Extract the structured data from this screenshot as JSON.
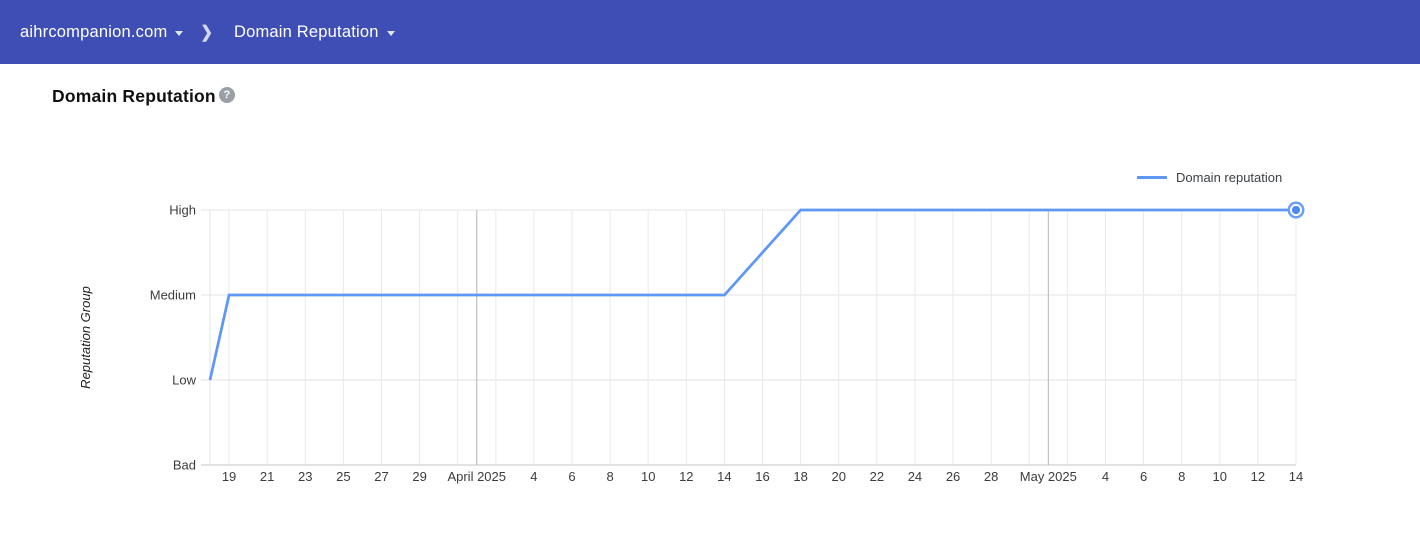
{
  "header": {
    "site_label": "aihrcompanion.com",
    "page_label": "Domain Reputation"
  },
  "icons": {
    "chevron": "❯",
    "help": "?"
  },
  "main": {
    "title": "Domain Reputation"
  },
  "legend": {
    "label": "Domain reputation"
  },
  "chart_data": {
    "type": "line",
    "title": "Domain Reputation",
    "xlabel": "",
    "ylabel": "Reputation Group",
    "y_categories": [
      "Bad",
      "Low",
      "Medium",
      "High"
    ],
    "x_span_days": 57,
    "x_gridline_every_days": 2,
    "grid": true,
    "legend_position": "top-right",
    "x_ticks": [
      {
        "day": 1,
        "label": "19"
      },
      {
        "day": 3,
        "label": "21"
      },
      {
        "day": 5,
        "label": "23"
      },
      {
        "day": 7,
        "label": "25"
      },
      {
        "day": 9,
        "label": "27"
      },
      {
        "day": 11,
        "label": "29"
      },
      {
        "day": 14,
        "label": "April 2025",
        "month": true
      },
      {
        "day": 17,
        "label": "4"
      },
      {
        "day": 19,
        "label": "6"
      },
      {
        "day": 21,
        "label": "8"
      },
      {
        "day": 23,
        "label": "10"
      },
      {
        "day": 25,
        "label": "12"
      },
      {
        "day": 27,
        "label": "14"
      },
      {
        "day": 29,
        "label": "16"
      },
      {
        "day": 31,
        "label": "18"
      },
      {
        "day": 33,
        "label": "20"
      },
      {
        "day": 35,
        "label": "22"
      },
      {
        "day": 37,
        "label": "24"
      },
      {
        "day": 39,
        "label": "26"
      },
      {
        "day": 41,
        "label": "28"
      },
      {
        "day": 44,
        "label": "May 2025",
        "month": true
      },
      {
        "day": 47,
        "label": "4"
      },
      {
        "day": 49,
        "label": "6"
      },
      {
        "day": 51,
        "label": "8"
      },
      {
        "day": 53,
        "label": "10"
      },
      {
        "day": 55,
        "label": "12"
      },
      {
        "day": 57,
        "label": "14"
      }
    ],
    "series": [
      {
        "name": "Domain reputation",
        "interpolation": "linear",
        "end_marker": "selected-point",
        "points": [
          {
            "day": 0,
            "date": "Mar 18, 2025",
            "value": "Low"
          },
          {
            "day": 1,
            "date": "Mar 19, 2025",
            "value": "Medium"
          },
          {
            "day": 27,
            "date": "Apr 14, 2025",
            "value": "Medium"
          },
          {
            "day": 31,
            "date": "Apr 18, 2025",
            "value": "High"
          },
          {
            "day": 57,
            "date": "May 14, 2025",
            "value": "High"
          }
        ]
      }
    ]
  },
  "colors": {
    "header_bg": "#3e4eb5",
    "header_text": "#ffffff",
    "line": "#5e97f6",
    "marker_dot": "#4c8af0",
    "marker_ring": "#6d9ef7",
    "grid_light": "#e9e9e9",
    "grid_month": "#b3b3b3",
    "grid_level": "#e3e3e3",
    "axis_line": "#c6c6c6",
    "axis_text": "#3c3c3c",
    "ylabel_text": "#222222",
    "legend_text": "#3c4043",
    "title_text": "#111111",
    "help_icon_bg": "#9aa0a6"
  }
}
